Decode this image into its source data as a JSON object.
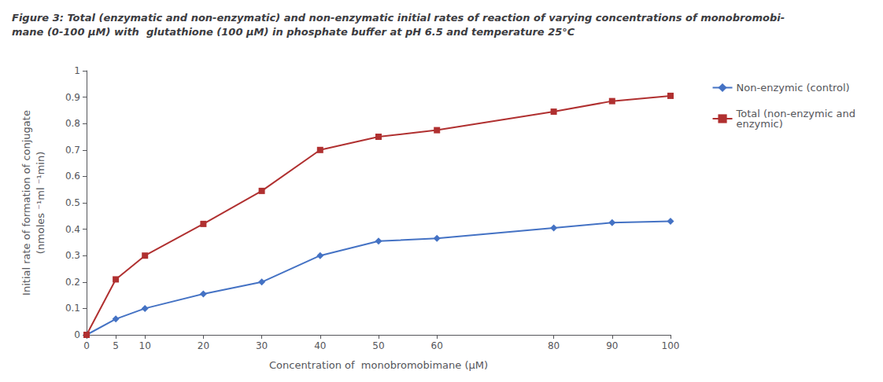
{
  "chart_data": {
    "type": "line",
    "title": "Figure 3:",
    "subtitle": " Total (enzymatic and non-enzymatic) and non-enzymatic initial rates of reaction of varying concentrations of monobromobi-\nmane (0-100 μM) with  glutathione (100 μM) in phosphate buffer at pH 6.5 and temperature 25°C",
    "x_label": "Concentration of  monobromobimane (μM)",
    "y_label": "Initial rate of formation of conjugate\n(nmoles ⁻¹ml ⁻¹min)",
    "x": [
      0,
      5,
      10,
      20,
      30,
      40,
      50,
      60,
      80,
      90,
      100
    ],
    "series": [
      {
        "name": "Non-enzymic (control)",
        "color": "#4472C4",
        "marker": "diamond",
        "values": [
          0.0,
          0.06,
          0.1,
          0.155,
          0.2,
          0.3,
          0.355,
          0.365,
          0.405,
          0.425,
          0.43
        ]
      },
      {
        "name": "Total (non-enzymic and\nenzymic)",
        "color": "#B03030",
        "marker": "square",
        "values": [
          0.0,
          0.21,
          0.3,
          0.42,
          0.545,
          0.7,
          0.75,
          0.775,
          0.845,
          0.885,
          0.905
        ]
      }
    ],
    "xlim": [
      0,
      100
    ],
    "xticks": [
      0,
      5,
      10,
      20,
      30,
      40,
      50,
      60,
      80,
      90,
      100
    ],
    "ylim": [
      0,
      1.0
    ],
    "yticks": [
      0,
      0.1,
      0.2,
      0.3,
      0.4,
      0.5,
      0.6,
      0.7,
      0.8,
      0.9,
      1
    ],
    "grid": false,
    "legend": "right"
  }
}
